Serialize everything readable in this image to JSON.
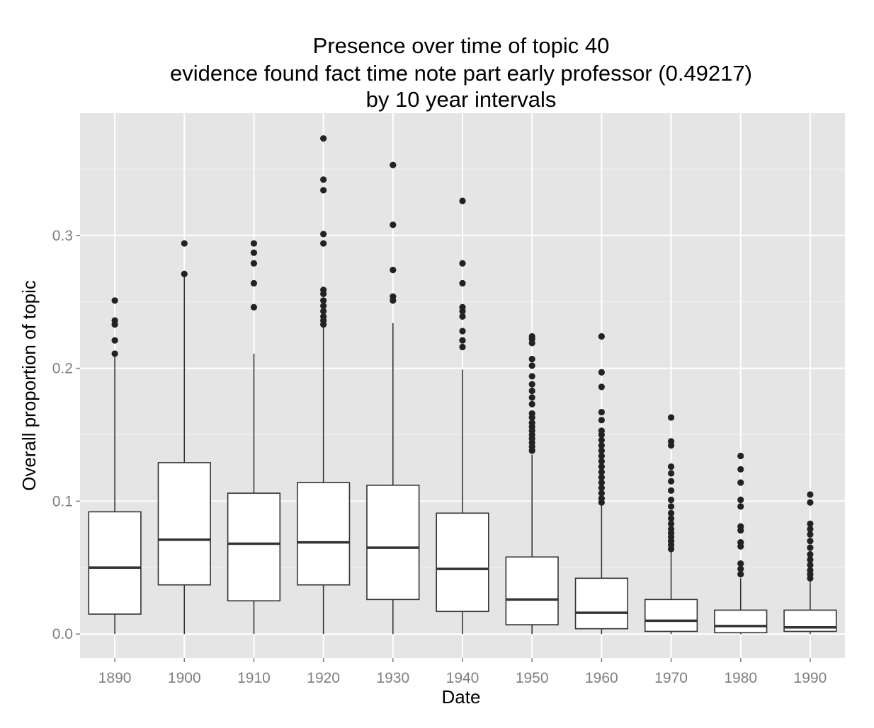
{
  "chart_data": {
    "type": "boxplot",
    "title_lines": [
      "Presence over time of topic 40",
      "evidence found fact time note part early professor (0.49217)",
      "by 10 year intervals"
    ],
    "xlabel": "Date",
    "ylabel": "Overall proportion of topic",
    "ylim": [
      -0.018,
      0.392
    ],
    "y_ticks": [
      0.0,
      0.1,
      0.2,
      0.3
    ],
    "y_tick_labels": [
      "0.0",
      "0.1",
      "0.2",
      "0.3"
    ],
    "grid": true,
    "legend": "none",
    "colors": {
      "panel": "#e5e5e5",
      "grid_major": "#ffffff",
      "grid_minor": "#f2f2f2",
      "box_fill": "#ffffff",
      "box_line": "#333333",
      "outlier": "#222222",
      "tick_label": "#7f7f7f"
    },
    "categories": [
      "1890",
      "1900",
      "1910",
      "1920",
      "1930",
      "1940",
      "1950",
      "1960",
      "1970",
      "1980",
      "1990"
    ],
    "boxes": [
      {
        "x": "1890",
        "whisker_low": 0.0,
        "q1": 0.015,
        "median": 0.05,
        "q3": 0.092,
        "whisker_high": 0.209,
        "outliers": [
          0.211,
          0.221,
          0.233,
          0.236,
          0.251
        ]
      },
      {
        "x": "1900",
        "whisker_low": 0.0,
        "q1": 0.037,
        "median": 0.071,
        "q3": 0.129,
        "whisker_high": 0.269,
        "outliers": [
          0.271,
          0.294
        ]
      },
      {
        "x": "1910",
        "whisker_low": 0.0,
        "q1": 0.025,
        "median": 0.068,
        "q3": 0.106,
        "whisker_high": 0.211,
        "outliers": [
          0.246,
          0.264,
          0.279,
          0.287,
          0.294
        ]
      },
      {
        "x": "1920",
        "whisker_low": 0.0,
        "q1": 0.037,
        "median": 0.069,
        "q3": 0.114,
        "whisker_high": 0.231,
        "outliers": [
          0.233,
          0.236,
          0.239,
          0.243,
          0.247,
          0.251,
          0.256,
          0.259,
          0.294,
          0.301,
          0.334,
          0.342,
          0.373
        ]
      },
      {
        "x": "1930",
        "whisker_low": 0.0,
        "q1": 0.026,
        "median": 0.065,
        "q3": 0.112,
        "whisker_high": 0.234,
        "outliers": [
          0.251,
          0.254,
          0.274,
          0.308,
          0.353
        ]
      },
      {
        "x": "1940",
        "whisker_low": 0.0,
        "q1": 0.017,
        "median": 0.049,
        "q3": 0.091,
        "whisker_high": 0.199,
        "outliers": [
          0.216,
          0.221,
          0.228,
          0.239,
          0.243,
          0.246,
          0.264,
          0.279,
          0.326
        ]
      },
      {
        "x": "1950",
        "whisker_low": 0.0,
        "q1": 0.007,
        "median": 0.026,
        "q3": 0.058,
        "whisker_high": 0.135,
        "outliers": [
          0.138,
          0.141,
          0.144,
          0.147,
          0.15,
          0.153,
          0.156,
          0.159,
          0.163,
          0.166,
          0.173,
          0.178,
          0.183,
          0.188,
          0.194,
          0.202,
          0.207,
          0.219,
          0.222,
          0.224
        ]
      },
      {
        "x": "1960",
        "whisker_low": 0.0,
        "q1": 0.004,
        "median": 0.016,
        "q3": 0.042,
        "whisker_high": 0.097,
        "outliers": [
          0.099,
          0.102,
          0.106,
          0.11,
          0.114,
          0.118,
          0.122,
          0.126,
          0.13,
          0.134,
          0.138,
          0.142,
          0.146,
          0.15,
          0.153,
          0.161,
          0.167,
          0.186,
          0.197,
          0.224
        ]
      },
      {
        "x": "1970",
        "whisker_low": 0.0,
        "q1": 0.002,
        "median": 0.01,
        "q3": 0.026,
        "whisker_high": 0.062,
        "outliers": [
          0.064,
          0.067,
          0.07,
          0.073,
          0.076,
          0.079,
          0.083,
          0.087,
          0.091,
          0.096,
          0.101,
          0.108,
          0.115,
          0.121,
          0.126,
          0.142,
          0.145,
          0.163
        ]
      },
      {
        "x": "1980",
        "whisker_low": 0.0,
        "q1": 0.001,
        "median": 0.006,
        "q3": 0.018,
        "whisker_high": 0.042,
        "outliers": [
          0.045,
          0.049,
          0.053,
          0.066,
          0.069,
          0.078,
          0.081,
          0.096,
          0.101,
          0.114,
          0.124,
          0.134
        ]
      },
      {
        "x": "1990",
        "whisker_low": 0.0,
        "q1": 0.002,
        "median": 0.005,
        "q3": 0.018,
        "whisker_high": 0.04,
        "outliers": [
          0.042,
          0.045,
          0.048,
          0.052,
          0.056,
          0.06,
          0.065,
          0.07,
          0.075,
          0.079,
          0.083,
          0.099,
          0.105
        ]
      }
    ]
  }
}
